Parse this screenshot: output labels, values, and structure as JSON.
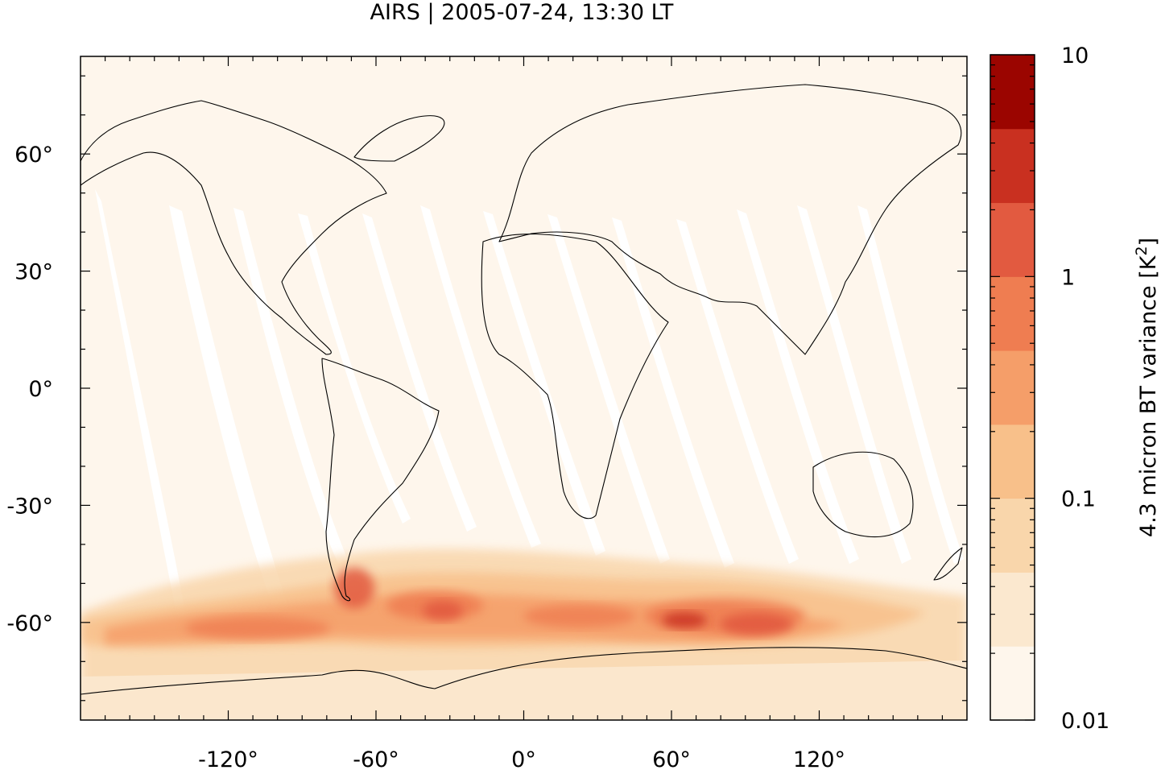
{
  "title": "AIRS | 2005-07-24, 13:30 LT",
  "map": {
    "lat_ticks": [
      {
        "value": 60,
        "label": "60°"
      },
      {
        "value": 30,
        "label": "30°"
      },
      {
        "value": 0,
        "label": "0°"
      },
      {
        "value": -30,
        "label": "-30°"
      },
      {
        "value": -60,
        "label": "-60°"
      }
    ],
    "lon_ticks": [
      {
        "value": -120,
        "label": "-120°"
      },
      {
        "value": -60,
        "label": "-60°"
      },
      {
        "value": 0,
        "label": "0°"
      },
      {
        "value": 60,
        "label": "60°"
      },
      {
        "value": 120,
        "label": "120°"
      }
    ],
    "lon_range": [
      -180,
      180
    ],
    "lat_range": [
      -85,
      85
    ],
    "background_color": "#fef6ec",
    "swath_gap_color": "#ffffff",
    "coastline_color": "#000000"
  },
  "colorbar": {
    "label_main": "4.3 micron BT variance [K",
    "label_sup": "2",
    "label_end": "]",
    "scale": "log",
    "range": [
      0.01,
      10
    ],
    "tick_labels": [
      {
        "value": 10,
        "label": "10"
      },
      {
        "value": 1,
        "label": "1"
      },
      {
        "value": 0.1,
        "label": "0.1"
      },
      {
        "value": 0.01,
        "label": "0.01"
      }
    ],
    "colors_bottom_to_top": [
      "#fef6ec",
      "#fbe8cf",
      "#f9d6ab",
      "#f8c08a",
      "#f59e69",
      "#ef7d51",
      "#e25a40",
      "#c93020",
      "#9b0500"
    ]
  }
}
